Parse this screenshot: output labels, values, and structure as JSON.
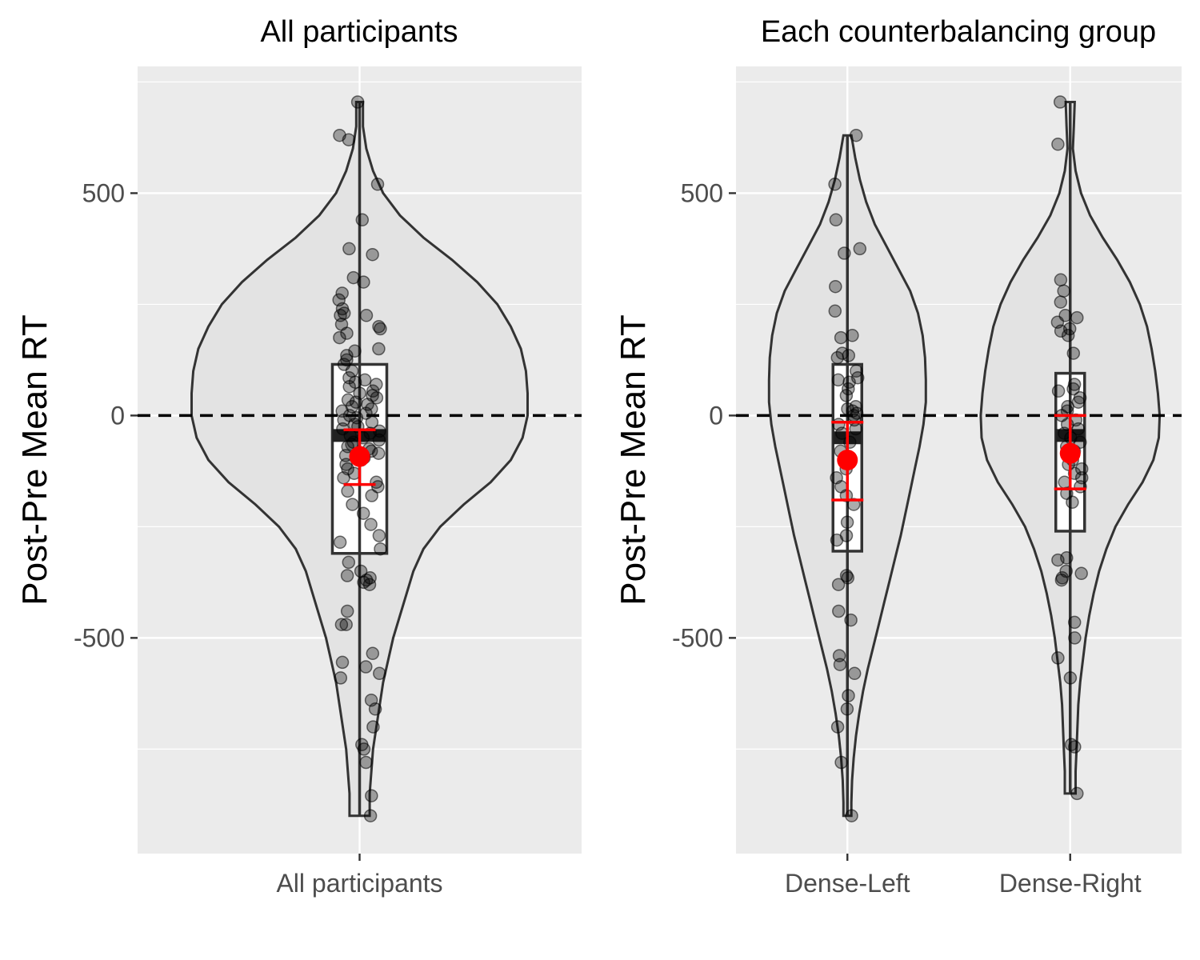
{
  "chart_data": [
    {
      "type": "violin",
      "title": "All participants",
      "xlabel": "",
      "ylabel": "Post-Pre Mean RT",
      "ylim": [
        -985,
        785
      ],
      "y_ticks": [
        -500,
        0,
        500
      ],
      "y_tick_labels": [
        "-500",
        "0",
        "500"
      ],
      "reference_line": 0,
      "grid": true,
      "categories": [
        "All participants"
      ],
      "groups": [
        {
          "name": "All participants",
          "min": -900,
          "q1": -310,
          "median": -45,
          "q3": 115,
          "max": 705,
          "mean": -92,
          "ci": [
            -155,
            -32
          ],
          "density": [
            [
              705,
              0.02
            ],
            [
              650,
              0.02
            ],
            [
              600,
              0.04
            ],
            [
              550,
              0.08
            ],
            [
              500,
              0.14
            ],
            [
              450,
              0.24
            ],
            [
              400,
              0.38
            ],
            [
              350,
              0.55
            ],
            [
              300,
              0.7
            ],
            [
              250,
              0.82
            ],
            [
              200,
              0.9
            ],
            [
              150,
              0.96
            ],
            [
              100,
              0.99
            ],
            [
              50,
              1.0
            ],
            [
              0,
              1.0
            ],
            [
              -50,
              0.97
            ],
            [
              -100,
              0.9
            ],
            [
              -150,
              0.78
            ],
            [
              -200,
              0.62
            ],
            [
              -250,
              0.48
            ],
            [
              -300,
              0.38
            ],
            [
              -350,
              0.32
            ],
            [
              -400,
              0.28
            ],
            [
              -450,
              0.24
            ],
            [
              -500,
              0.2
            ],
            [
              -550,
              0.17
            ],
            [
              -600,
              0.14
            ],
            [
              -650,
              0.12
            ],
            [
              -700,
              0.1
            ],
            [
              -750,
              0.08
            ],
            [
              -800,
              0.07
            ],
            [
              -850,
              0.06
            ],
            [
              -900,
              0.06
            ]
          ],
          "points": [
            705,
            630,
            620,
            520,
            440,
            375,
            362,
            310,
            300,
            275,
            260,
            240,
            230,
            225,
            225,
            205,
            200,
            195,
            185,
            175,
            150,
            145,
            135,
            125,
            115,
            100,
            85,
            80,
            75,
            70,
            65,
            55,
            50,
            45,
            40,
            35,
            30,
            25,
            20,
            15,
            10,
            5,
            0,
            -5,
            -10,
            -15,
            -20,
            -25,
            -30,
            -35,
            -40,
            -45,
            -50,
            -55,
            -60,
            -65,
            -70,
            -75,
            -80,
            -85,
            -90,
            -95,
            -100,
            -110,
            -120,
            -130,
            -140,
            -150,
            -160,
            -170,
            -180,
            -200,
            -220,
            -245,
            -270,
            -285,
            -300,
            -330,
            -350,
            -360,
            -365,
            -370,
            -375,
            -380,
            -440,
            -470,
            -470,
            -535,
            -555,
            -565,
            -580,
            -590,
            -640,
            -660,
            -700,
            -740,
            -750,
            -780,
            -855,
            -900
          ]
        }
      ]
    },
    {
      "type": "violin",
      "title": "Each counterbalancing group",
      "xlabel": "",
      "ylabel": "Post-Pre Mean RT",
      "ylim": [
        -985,
        785
      ],
      "y_ticks": [
        -500,
        0,
        500
      ],
      "y_tick_labels": [
        "-500",
        "0",
        "500"
      ],
      "reference_line": 0,
      "grid": true,
      "categories": [
        "Dense-Left",
        "Dense-Right"
      ],
      "groups": [
        {
          "name": "Dense-Left",
          "min": -900,
          "q1": -305,
          "median": -50,
          "q3": 115,
          "max": 630,
          "mean": -100,
          "ci": [
            -190,
            -15
          ],
          "density": [
            [
              630,
              0.05
            ],
            [
              580,
              0.1
            ],
            [
              530,
              0.16
            ],
            [
              480,
              0.24
            ],
            [
              430,
              0.35
            ],
            [
              380,
              0.5
            ],
            [
              330,
              0.65
            ],
            [
              280,
              0.8
            ],
            [
              230,
              0.9
            ],
            [
              180,
              0.96
            ],
            [
              130,
              0.99
            ],
            [
              80,
              1.0
            ],
            [
              30,
              1.0
            ],
            [
              -20,
              0.97
            ],
            [
              -70,
              0.92
            ],
            [
              -120,
              0.86
            ],
            [
              -170,
              0.8
            ],
            [
              -220,
              0.74
            ],
            [
              -270,
              0.68
            ],
            [
              -320,
              0.61
            ],
            [
              -370,
              0.54
            ],
            [
              -420,
              0.47
            ],
            [
              -470,
              0.4
            ],
            [
              -520,
              0.33
            ],
            [
              -570,
              0.26
            ],
            [
              -620,
              0.2
            ],
            [
              -670,
              0.15
            ],
            [
              -720,
              0.11
            ],
            [
              -770,
              0.08
            ],
            [
              -820,
              0.06
            ],
            [
              -870,
              0.05
            ],
            [
              -900,
              0.05
            ]
          ],
          "points": [
            630,
            520,
            440,
            375,
            365,
            290,
            235,
            180,
            175,
            140,
            135,
            130,
            100,
            85,
            80,
            75,
            60,
            45,
            20,
            15,
            10,
            5,
            0,
            -10,
            -20,
            -30,
            -40,
            -60,
            -80,
            -100,
            -120,
            -140,
            -160,
            -180,
            -200,
            -240,
            -270,
            -280,
            -360,
            -365,
            -380,
            -440,
            -460,
            -540,
            -560,
            -580,
            -630,
            -660,
            -700,
            -780,
            -900
          ]
        },
        {
          "name": "Dense-Right",
          "min": -850,
          "q1": -260,
          "median": -45,
          "q3": 95,
          "max": 705,
          "mean": -85,
          "ci": [
            -165,
            0
          ],
          "density": [
            [
              705,
              0.05
            ],
            [
              650,
              0.04
            ],
            [
              600,
              0.03
            ],
            [
              550,
              0.06
            ],
            [
              500,
              0.12
            ],
            [
              450,
              0.22
            ],
            [
              400,
              0.36
            ],
            [
              350,
              0.52
            ],
            [
              300,
              0.66
            ],
            [
              250,
              0.77
            ],
            [
              200,
              0.85
            ],
            [
              150,
              0.9
            ],
            [
              100,
              0.94
            ],
            [
              50,
              0.97
            ],
            [
              0,
              0.99
            ],
            [
              -50,
              0.98
            ],
            [
              -100,
              0.92
            ],
            [
              -150,
              0.8
            ],
            [
              -200,
              0.64
            ],
            [
              -250,
              0.5
            ],
            [
              -300,
              0.4
            ],
            [
              -350,
              0.32
            ],
            [
              -400,
              0.26
            ],
            [
              -450,
              0.21
            ],
            [
              -500,
              0.17
            ],
            [
              -550,
              0.14
            ],
            [
              -600,
              0.11
            ],
            [
              -650,
              0.09
            ],
            [
              -700,
              0.08
            ],
            [
              -750,
              0.07
            ],
            [
              -800,
              0.06
            ],
            [
              -850,
              0.06
            ]
          ],
          "points": [
            705,
            610,
            305,
            280,
            255,
            225,
            220,
            210,
            195,
            190,
            180,
            140,
            70,
            60,
            55,
            40,
            30,
            20,
            10,
            0,
            -10,
            -20,
            -30,
            -40,
            -50,
            -60,
            -70,
            -80,
            -90,
            -100,
            -110,
            -120,
            -130,
            -140,
            -150,
            -160,
            -175,
            -195,
            -320,
            -325,
            -350,
            -355,
            -365,
            -370,
            -465,
            -500,
            -545,
            -590,
            -740,
            -745,
            -850
          ]
        }
      ]
    }
  ]
}
